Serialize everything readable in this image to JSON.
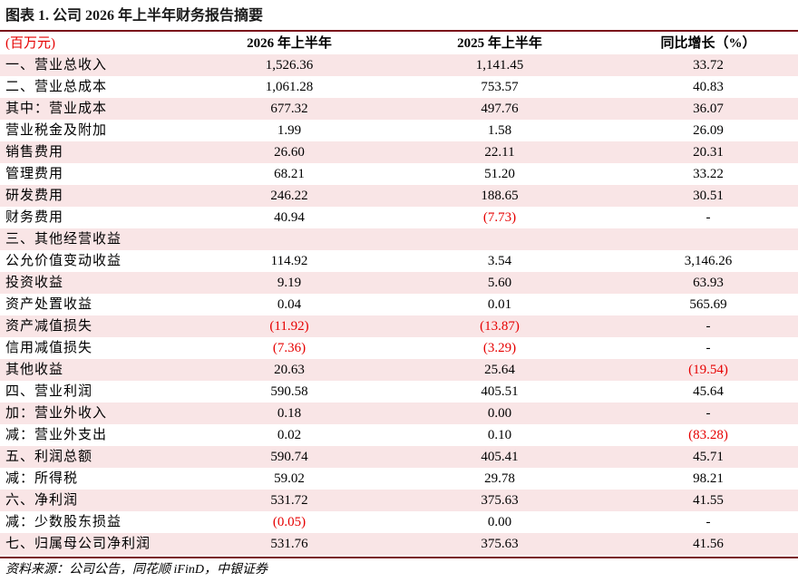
{
  "title": "图表 1. 公司 2026 年上半年财务报告摘要",
  "header": {
    "unit": "(百万元)",
    "col1": "2026 年上半年",
    "col2": "2025 年上半年",
    "col3": "同比增长（%）"
  },
  "rows": [
    {
      "label": "一、营业总收入",
      "v1": "1,526.36",
      "v2": "1,141.45",
      "v3": "33.72"
    },
    {
      "label": "二、营业总成本",
      "v1": "1,061.28",
      "v2": "753.57",
      "v3": "40.83"
    },
    {
      "label": "其中：营业成本",
      "v1": "677.32",
      "v2": "497.76",
      "v3": "36.07"
    },
    {
      "label": "营业税金及附加",
      "v1": "1.99",
      "v2": "1.58",
      "v3": "26.09"
    },
    {
      "label": "销售费用",
      "v1": "26.60",
      "v2": "22.11",
      "v3": "20.31"
    },
    {
      "label": "管理费用",
      "v1": "68.21",
      "v2": "51.20",
      "v3": "33.22"
    },
    {
      "label": "研发费用",
      "v1": "246.22",
      "v2": "188.65",
      "v3": "30.51"
    },
    {
      "label": "财务费用",
      "v1": "40.94",
      "v2": "(7.73)",
      "v3": "-"
    },
    {
      "label": "三、其他经营收益",
      "v1": "",
      "v2": "",
      "v3": ""
    },
    {
      "label": "公允价值变动收益",
      "v1": "114.92",
      "v2": "3.54",
      "v3": "3,146.26"
    },
    {
      "label": "投资收益",
      "v1": "9.19",
      "v2": "5.60",
      "v3": "63.93"
    },
    {
      "label": "资产处置收益",
      "v1": "0.04",
      "v2": "0.01",
      "v3": "565.69"
    },
    {
      "label": "资产减值损失",
      "v1": "(11.92)",
      "v2": "(13.87)",
      "v3": "-"
    },
    {
      "label": "信用减值损失",
      "v1": "(7.36)",
      "v2": "(3.29)",
      "v3": "-"
    },
    {
      "label": "其他收益",
      "v1": "20.63",
      "v2": "25.64",
      "v3": "(19.54)"
    },
    {
      "label": "四、营业利润",
      "v1": "590.58",
      "v2": "405.51",
      "v3": "45.64"
    },
    {
      "label": "加：营业外收入",
      "v1": "0.18",
      "v2": "0.00",
      "v3": "-"
    },
    {
      "label": "减：营业外支出",
      "v1": "0.02",
      "v2": "0.10",
      "v3": "(83.28)"
    },
    {
      "label": "五、利润总额",
      "v1": "590.74",
      "v2": "405.41",
      "v3": "45.71"
    },
    {
      "label": "减：所得税",
      "v1": "59.02",
      "v2": "29.78",
      "v3": "98.21"
    },
    {
      "label": "六、净利润",
      "v1": "531.72",
      "v2": "375.63",
      "v3": "41.55"
    },
    {
      "label": "减：少数股东损益",
      "v1": "(0.05)",
      "v2": "0.00",
      "v3": "-"
    },
    {
      "label": "七、归属母公司净利润",
      "v1": "531.76",
      "v2": "375.63",
      "v3": "41.56"
    }
  ],
  "source": "资料来源：公司公告，同花顺 iFinD，中银证券",
  "colors": {
    "accent_rule": "#7a0f1a",
    "row_shade": "#f9e5e6",
    "negative": "#e60000"
  }
}
